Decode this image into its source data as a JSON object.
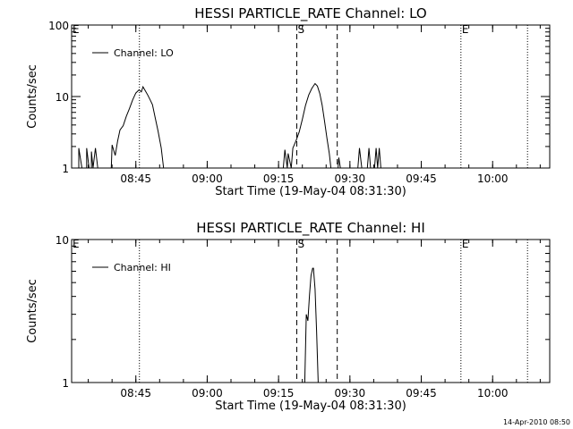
{
  "footer_timestamp": "14-Apr-2010 08:50",
  "chart_data": [
    {
      "type": "line",
      "title": "HESSI PARTICLE_RATE Channel: LO",
      "xlabel": "Start Time (19-May-04 08:31:30)",
      "ylabel": "Counts/sec",
      "yscale": "log",
      "ylim": [
        1,
        100
      ],
      "y_ticks": [
        {
          "value": 1,
          "label": "1"
        },
        {
          "value": 10,
          "label": "10"
        },
        {
          "value": 100,
          "label": "100"
        }
      ],
      "xlim": [
        "08:31:30",
        "10:12:00"
      ],
      "x_ticks": [
        "08:45",
        "09:00",
        "09:15",
        "09:30",
        "09:45",
        "10:00"
      ],
      "legend": {
        "label": "Channel: LO",
        "position": "top-left"
      },
      "markers": [
        {
          "time": "08:31:30",
          "label": "E",
          "style": "none"
        },
        {
          "time": "08:45:45",
          "label": "",
          "style": "dotted"
        },
        {
          "time": "09:18:50",
          "label": "S",
          "style": "dashed"
        },
        {
          "time": "09:27:20",
          "label": "",
          "style": "dashed"
        },
        {
          "time": "09:53:20",
          "label": "E",
          "style": "dotted"
        },
        {
          "time": "10:07:20",
          "label": "",
          "style": "dotted"
        }
      ],
      "series": [
        {
          "name": "Channel: LO",
          "segments": [
            [
              [
                "08:33:00",
                1
              ],
              [
                "08:33:00",
                1.9
              ],
              [
                "08:33:40",
                1
              ],
              [
                "08:34:40",
                1
              ],
              [
                "08:34:40",
                1.9
              ],
              [
                "08:35:10",
                1
              ],
              [
                "08:35:40",
                1
              ],
              [
                "08:35:40",
                1.7
              ],
              [
                "08:36:00",
                1
              ],
              [
                "08:36:30",
                1.9
              ],
              [
                "08:37:00",
                1
              ]
            ],
            [
              [
                "08:39:50",
                1
              ],
              [
                "08:40:00",
                2.1
              ],
              [
                "08:40:40",
                1.5
              ],
              [
                "08:41:10",
                2.4
              ],
              [
                "08:41:40",
                3.4
              ],
              [
                "08:42:20",
                3.9
              ],
              [
                "08:43:00",
                5.3
              ],
              [
                "08:43:40",
                6.8
              ],
              [
                "08:44:20",
                9
              ],
              [
                "08:45:00",
                11.2
              ],
              [
                "08:45:40",
                12.4
              ],
              [
                "08:46:10",
                11.6
              ],
              [
                "08:46:30",
                13.7
              ],
              [
                "08:47:00",
                12
              ],
              [
                "08:47:30",
                10.5
              ],
              [
                "08:48:00",
                9
              ],
              [
                "08:48:30",
                7.7
              ],
              [
                "08:49:00",
                5.3
              ],
              [
                "08:49:40",
                3.3
              ],
              [
                "08:50:20",
                1.9
              ],
              [
                "08:50:50",
                1
              ]
            ],
            [
              [
                "09:16:00",
                1
              ],
              [
                "09:16:20",
                1.8
              ],
              [
                "09:16:50",
                1
              ],
              [
                "09:17:00",
                1.6
              ],
              [
                "09:17:40",
                1
              ],
              [
                "09:18:00",
                1.9
              ],
              [
                "09:18:40",
                2.4
              ],
              [
                "09:19:20",
                3.2
              ],
              [
                "09:20:00",
                4.8
              ],
              [
                "09:20:40",
                7.5
              ],
              [
                "09:21:20",
                10.5
              ],
              [
                "09:22:00",
                13
              ],
              [
                "09:22:40",
                15.2
              ],
              [
                "09:23:10",
                14
              ],
              [
                "09:23:40",
                11
              ],
              [
                "09:24:10",
                7.6
              ],
              [
                "09:24:40",
                4.5
              ],
              [
                "09:25:10",
                2.6
              ],
              [
                "09:25:40",
                1.6
              ],
              [
                "09:26:00",
                1
              ]
            ],
            [
              [
                "09:27:30",
                1
              ],
              [
                "09:27:40",
                1.4
              ],
              [
                "09:28:00",
                1
              ]
            ],
            [
              [
                "09:31:40",
                1
              ],
              [
                "09:32:00",
                1.9
              ],
              [
                "09:32:30",
                1
              ],
              [
                "09:33:40",
                1
              ],
              [
                "09:34:00",
                1.9
              ],
              [
                "09:34:20",
                1
              ],
              [
                "09:35:10",
                1
              ],
              [
                "09:35:30",
                1.9
              ],
              [
                "09:35:50",
                1
              ],
              [
                "09:36:10",
                1.9
              ],
              [
                "09:36:30",
                1
              ]
            ]
          ]
        }
      ]
    },
    {
      "type": "line",
      "title": "HESSI PARTICLE_RATE Channel: HI",
      "xlabel": "Start Time (19-May-04 08:31:30)",
      "ylabel": "Counts/sec",
      "yscale": "log",
      "ylim": [
        1,
        10
      ],
      "y_ticks": [
        {
          "value": 1,
          "label": "1"
        },
        {
          "value": 10,
          "label": "10"
        }
      ],
      "xlim": [
        "08:31:30",
        "10:12:00"
      ],
      "x_ticks": [
        "08:45",
        "09:00",
        "09:15",
        "09:30",
        "09:45",
        "10:00"
      ],
      "legend": {
        "label": "Channel: HI",
        "position": "top-left"
      },
      "markers": [
        {
          "time": "08:31:30",
          "label": "E",
          "style": "none"
        },
        {
          "time": "08:45:45",
          "label": "",
          "style": "dotted"
        },
        {
          "time": "09:18:50",
          "label": "S",
          "style": "dashed"
        },
        {
          "time": "09:27:20",
          "label": "",
          "style": "dashed"
        },
        {
          "time": "09:53:20",
          "label": "E",
          "style": "dotted"
        },
        {
          "time": "10:07:20",
          "label": "",
          "style": "dotted"
        }
      ],
      "series": [
        {
          "name": "Channel: HI",
          "segments": [
            [
              [
                "09:20:30",
                1
              ],
              [
                "09:20:50",
                3
              ],
              [
                "09:21:10",
                2.7
              ],
              [
                "09:21:30",
                4.1
              ],
              [
                "09:21:50",
                5.6
              ],
              [
                "09:22:10",
                6.3
              ],
              [
                "09:22:20",
                6.3
              ],
              [
                "09:22:40",
                4.5
              ],
              [
                "09:23:00",
                2.3
              ],
              [
                "09:23:20",
                1
              ]
            ]
          ]
        }
      ]
    }
  ]
}
